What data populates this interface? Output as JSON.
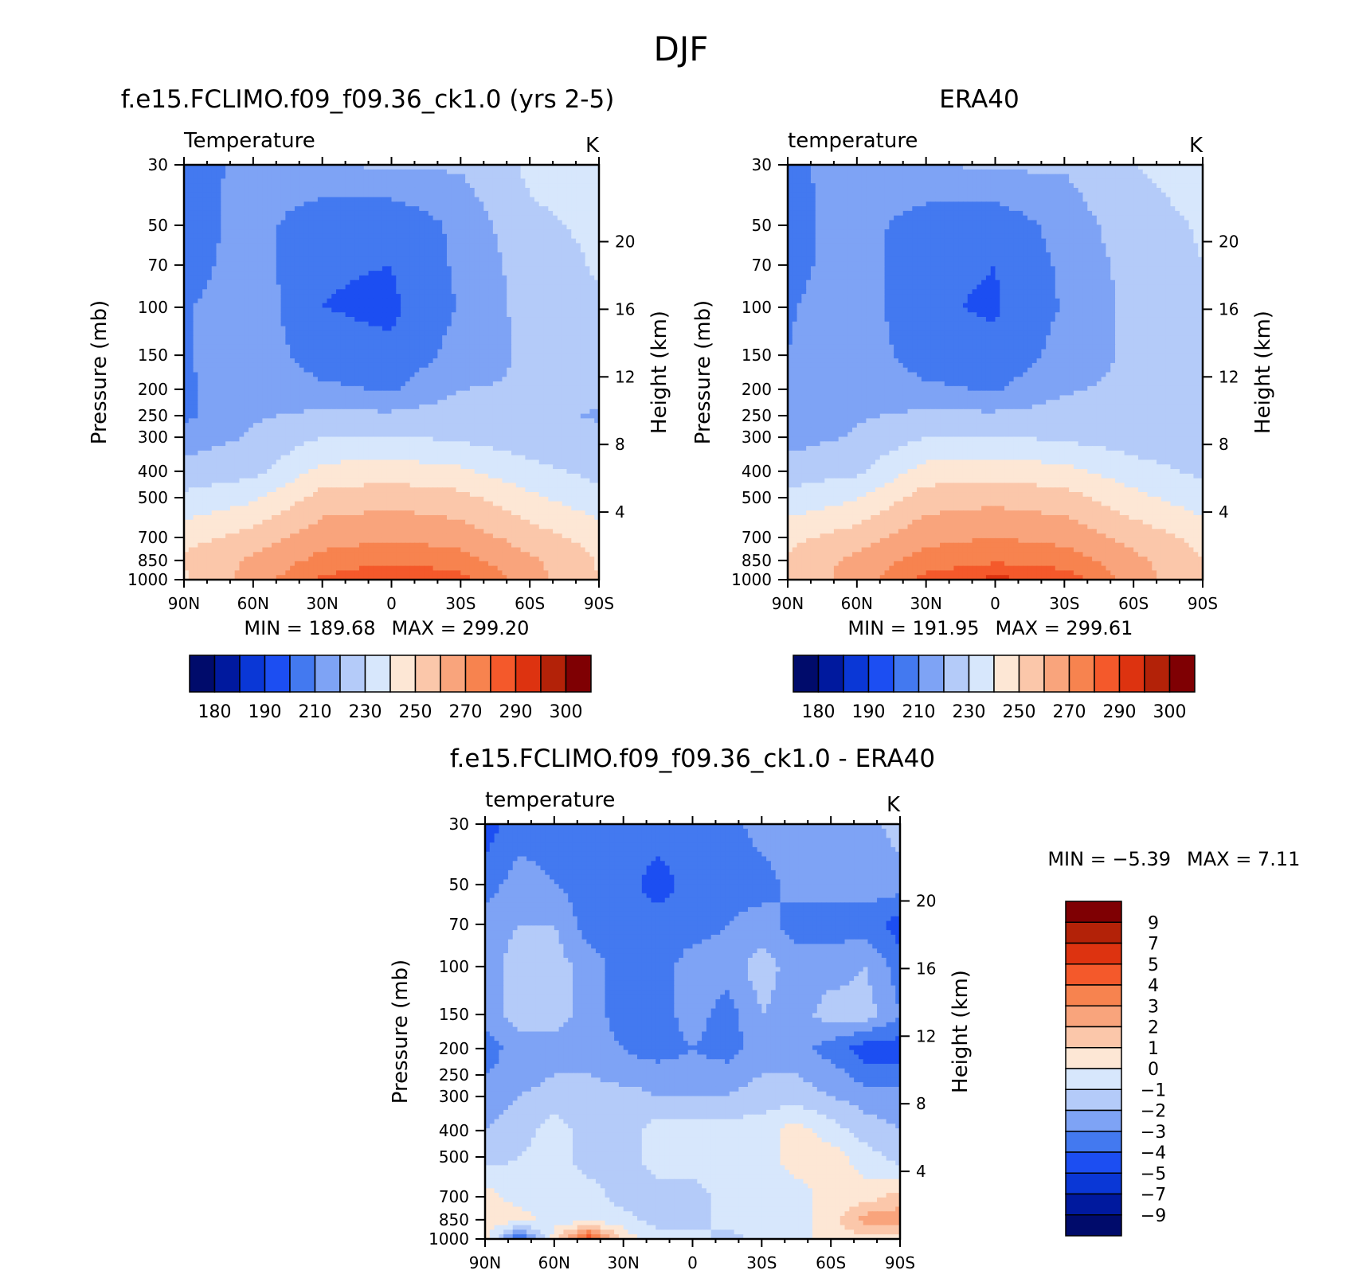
{
  "figure": {
    "title": "DJF"
  },
  "chart_data": [
    {
      "type": "heatmap",
      "title": "f.e15.FCLIMO.f09_f09.36_ck1.0 (yrs 2-5)",
      "subtitle_left": "Temperature",
      "subtitle_right": "K",
      "xlabel": "",
      "ylabel": "Pressure (mb)",
      "ylabel_right": "Height (km)",
      "x_ticks": [
        "90N",
        "60N",
        "30N",
        "0",
        "30S",
        "60S",
        "90S"
      ],
      "y_ticks": [
        "30",
        "50",
        "70",
        "100",
        "150",
        "200",
        "250",
        "300",
        "400",
        "500",
        "700",
        "850",
        "1000"
      ],
      "y_ticks_right": [
        "20",
        "16",
        "12",
        "8",
        "4"
      ],
      "ylim": [
        1000,
        30
      ],
      "y_scale": "log",
      "min_label": "MIN = 189.68",
      "max_label": "MAX = 299.20",
      "colorbar": {
        "orientation": "horizontal",
        "tick_labels": [
          "180",
          "190",
          "210",
          "230",
          "250",
          "270",
          "290",
          "300"
        ],
        "colors": [
          "#000b6b",
          "#00199e",
          "#0a37d6",
          "#1c4ef2",
          "#4379f0",
          "#7ea3f5",
          "#b4cbf9",
          "#d7e7fc",
          "#fde7d5",
          "#fbc7aa",
          "#f9a47c",
          "#f7834f",
          "#f4592b",
          "#dd3310",
          "#b32208",
          "#7f0003"
        ]
      },
      "approx_values": {
        "latitudes": [
          90,
          60,
          30,
          0,
          -30,
          -60,
          -90
        ],
        "pressures": [
          30,
          50,
          70,
          100,
          150,
          200,
          250,
          300,
          400,
          500,
          700,
          850,
          1000
        ],
        "temperature_K": [
          [
            206,
            213,
            219,
            222,
            221,
            232,
            235
          ],
          [
            205,
            214,
            203,
            201,
            213,
            228,
            232
          ],
          [
            206,
            215,
            201,
            200,
            212,
            225,
            231
          ],
          [
            209,
            216,
            200,
            198,
            211,
            224,
            229
          ],
          [
            209,
            217,
            204,
            202,
            214,
            222,
            224
          ],
          [
            208,
            218,
            212,
            209,
            220,
            221,
            222
          ],
          [
            208,
            219,
            222,
            222,
            225,
            223,
            219
          ],
          [
            215,
            221,
            230,
            231,
            228,
            224,
            222
          ],
          [
            224,
            227,
            243,
            245,
            242,
            233,
            227
          ],
          [
            232,
            238,
            254,
            256,
            253,
            242,
            233
          ],
          [
            246,
            254,
            266,
            269,
            266,
            255,
            246
          ],
          [
            252,
            262,
            273,
            277,
            274,
            262,
            249
          ],
          [
            248,
            264,
            282,
            291,
            284,
            264,
            250
          ]
        ]
      }
    },
    {
      "type": "heatmap",
      "title": "ERA40",
      "subtitle_left": "temperature",
      "subtitle_right": "K",
      "xlabel": "",
      "ylabel": "Pressure (mb)",
      "ylabel_right": "Height (km)",
      "x_ticks": [
        "90N",
        "60N",
        "30N",
        "0",
        "30S",
        "60S",
        "90S"
      ],
      "y_ticks": [
        "30",
        "50",
        "70",
        "100",
        "150",
        "200",
        "250",
        "300",
        "400",
        "500",
        "700",
        "850",
        "1000"
      ],
      "y_ticks_right": [
        "20",
        "16",
        "12",
        "8",
        "4"
      ],
      "ylim": [
        1000,
        30
      ],
      "y_scale": "log",
      "min_label": "MIN = 191.95",
      "max_label": "MAX = 299.61",
      "colorbar": {
        "orientation": "horizontal",
        "tick_labels": [
          "180",
          "190",
          "210",
          "230",
          "250",
          "270",
          "290",
          "300"
        ],
        "colors": [
          "#000b6b",
          "#00199e",
          "#0a37d6",
          "#1c4ef2",
          "#4379f0",
          "#7ea3f5",
          "#b4cbf9",
          "#d7e7fc",
          "#fde7d5",
          "#fbc7aa",
          "#f9a47c",
          "#f7834f",
          "#f4592b",
          "#dd3310",
          "#b32208",
          "#7f0003"
        ]
      },
      "approx_values": {
        "latitudes": [
          90,
          60,
          30,
          0,
          -30,
          -60,
          -90
        ],
        "pressures": [
          30,
          50,
          70,
          100,
          150,
          200,
          250,
          300,
          400,
          500,
          700,
          850,
          1000
        ],
        "temperature_K": [
          [
            208,
            214,
            219,
            222,
            221,
            230,
            234
          ],
          [
            207,
            214,
            205,
            203,
            214,
            226,
            231
          ],
          [
            207,
            215,
            202,
            200,
            212,
            224,
            230
          ],
          [
            209,
            216,
            201,
            199,
            211,
            223,
            228
          ],
          [
            210,
            217,
            204,
            202,
            214,
            222,
            226
          ],
          [
            210,
            218,
            212,
            209,
            219,
            222,
            224
          ],
          [
            210,
            219,
            222,
            222,
            224,
            223,
            222
          ],
          [
            216,
            221,
            230,
            231,
            228,
            225,
            223
          ],
          [
            225,
            228,
            244,
            246,
            243,
            234,
            228
          ],
          [
            233,
            239,
            255,
            257,
            254,
            243,
            234
          ],
          [
            247,
            255,
            267,
            270,
            267,
            256,
            247
          ],
          [
            252,
            263,
            274,
            278,
            275,
            263,
            250
          ],
          [
            250,
            265,
            283,
            293,
            286,
            265,
            252
          ]
        ]
      }
    },
    {
      "type": "heatmap",
      "title": "f.e15.FCLIMO.f09_f09.36_ck1.0 - ERA40",
      "subtitle_left": "temperature",
      "subtitle_right": "K",
      "xlabel": "",
      "ylabel": "Pressure (mb)",
      "ylabel_right": "Height (km)",
      "x_ticks": [
        "90N",
        "60N",
        "30N",
        "0",
        "30S",
        "60S",
        "90S"
      ],
      "y_ticks": [
        "30",
        "50",
        "70",
        "100",
        "150",
        "200",
        "250",
        "300",
        "400",
        "500",
        "700",
        "850",
        "1000"
      ],
      "y_ticks_right": [
        "20",
        "16",
        "12",
        "8",
        "4"
      ],
      "ylim": [
        1000,
        30
      ],
      "y_scale": "log",
      "min_label": "MIN = -5.39",
      "max_label": "MAX = 7.11",
      "colorbar": {
        "orientation": "vertical",
        "tick_labels": [
          "9",
          "7",
          "5",
          "4",
          "3",
          "2",
          "1",
          "0",
          "-1",
          "-2",
          "-3",
          "-4",
          "-5",
          "-7",
          "-9"
        ],
        "colors": [
          "#7f0003",
          "#b32208",
          "#dd3310",
          "#f4592b",
          "#f7834f",
          "#f9a47c",
          "#fbc7aa",
          "#fde7d5",
          "#d7e7fc",
          "#b4cbf9",
          "#7ea3f5",
          "#4379f0",
          "#1c4ef2",
          "#0a37d6",
          "#00199e",
          "#000b6b"
        ]
      },
      "approx_values": {
        "latitudes": [
          90,
          75,
          60,
          45,
          30,
          15,
          0,
          -15,
          -30,
          -45,
          -60,
          -75,
          -90
        ],
        "pressures": [
          30,
          50,
          70,
          100,
          150,
          200,
          250,
          300,
          400,
          500,
          700,
          850,
          1000
        ],
        "difference_K": [
          [
            -4.5,
            -3.5,
            -3.5,
            -3.5,
            -3.5,
            -3.5,
            -3.5,
            -3.5,
            -2.5,
            -2.5,
            -2.5,
            -2.5,
            -1.5
          ],
          [
            -3.5,
            -2.5,
            -3,
            -3.5,
            -3.5,
            -4.5,
            -3.5,
            -3.5,
            -3.5,
            -2.5,
            -2.5,
            -2.5,
            -2.5
          ],
          [
            -2.5,
            -2,
            -2,
            -3.5,
            -3.5,
            -3.5,
            -3.5,
            -3,
            -2.5,
            -3.5,
            -3.5,
            -3.5,
            -4.5
          ],
          [
            -2.5,
            -1.5,
            -1.5,
            -2.5,
            -3.5,
            -3.5,
            -2.5,
            -2.5,
            -1.5,
            -2.5,
            -2.5,
            -2,
            -3.5
          ],
          [
            -2.5,
            -1.5,
            -1.5,
            -2.5,
            -3.5,
            -3.5,
            -2.5,
            -3.5,
            -2,
            -2.5,
            -1.5,
            -1.5,
            -3
          ],
          [
            -3.5,
            -2.5,
            -2.5,
            -2.5,
            -3,
            -3.5,
            -3,
            -3.5,
            -2.5,
            -2.5,
            -3.5,
            -4.5,
            -4.5
          ],
          [
            -3,
            -2.5,
            -2,
            -2,
            -2.5,
            -2.5,
            -2.5,
            -2.5,
            -2,
            -2,
            -2.5,
            -3.5,
            -3.5
          ],
          [
            -2.5,
            -2,
            -1.5,
            -1.5,
            -1.5,
            -2,
            -2,
            -2,
            -1.5,
            -1.5,
            -2,
            -2.5,
            -2.5
          ],
          [
            -2,
            -1.5,
            -0.5,
            -1.5,
            -1.5,
            -0.5,
            -0.5,
            -0.5,
            -0.5,
            0.5,
            -0.5,
            -1.5,
            -2
          ],
          [
            -1.5,
            -1,
            -0.5,
            -1.5,
            -1.5,
            -0.5,
            -0.5,
            -0.5,
            -0.5,
            0.5,
            0.5,
            -0.5,
            -1.5
          ],
          [
            0.5,
            -0.5,
            -0.5,
            -0.5,
            -1.5,
            -1.5,
            -1.5,
            -0.5,
            -0.5,
            -0.5,
            0.5,
            0.5,
            1.5
          ],
          [
            0.5,
            0.5,
            -0.5,
            -0.5,
            -0.5,
            -1.5,
            -1.5,
            -0.5,
            -0.5,
            -0.5,
            0.5,
            2.5,
            2.5
          ],
          [
            0.5,
            -4.5,
            0.5,
            5,
            0.5,
            -0.5,
            -0.5,
            -1.5,
            -0.5,
            -0.5,
            0.5,
            0.5,
            0.5
          ]
        ]
      }
    }
  ]
}
